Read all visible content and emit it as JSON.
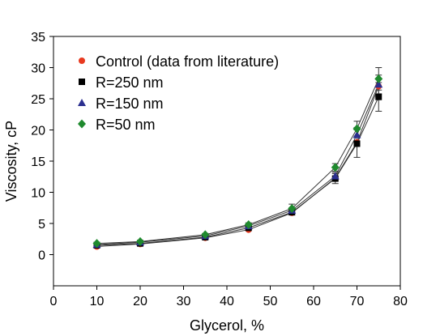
{
  "chart_data": {
    "type": "scatter",
    "title": "",
    "xlabel": "Glycerol, %",
    "ylabel": "Viscosity, cP",
    "xlim": [
      0,
      80
    ],
    "ylim": [
      -5,
      35
    ],
    "xticks": [
      0,
      10,
      20,
      30,
      40,
      50,
      60,
      70,
      80
    ],
    "yticks": [
      0,
      5,
      10,
      15,
      20,
      25,
      30,
      35
    ],
    "grid": false,
    "legend_position": "top-left",
    "x": [
      10,
      20,
      35,
      45,
      55,
      65,
      70,
      75
    ],
    "series": [
      {
        "name": "Control (data from literature)",
        "marker": "circle",
        "color": "#e8391f",
        "values": [
          1.3,
          1.7,
          2.7,
          4.0,
          6.7,
          12.3,
          18.0,
          27.0
        ],
        "errors": [
          0,
          0,
          0,
          0,
          0,
          0,
          0,
          0
        ]
      },
      {
        "name": "R=250 nm",
        "marker": "square",
        "color": "#000000",
        "values": [
          1.5,
          1.8,
          2.8,
          4.3,
          6.8,
          12.2,
          17.8,
          25.3
        ],
        "errors": [
          0.2,
          0.2,
          0.2,
          0.3,
          0.4,
          0.8,
          2.2,
          2.3
        ]
      },
      {
        "name": "R=150 nm",
        "marker": "triangle",
        "color": "#2b2f8f",
        "values": [
          1.6,
          2.0,
          3.0,
          4.6,
          7.1,
          12.6,
          19.2,
          27.3
        ],
        "errors": [
          0.2,
          0.2,
          0.2,
          0.3,
          0.4,
          0.6,
          1.2,
          1.5
        ]
      },
      {
        "name": "R=50 nm",
        "marker": "diamond",
        "color": "#1f8a2e",
        "values": [
          1.8,
          2.1,
          3.2,
          4.8,
          7.4,
          14.0,
          20.2,
          28.2
        ],
        "errors": [
          0.2,
          0.2,
          0.2,
          0.3,
          0.7,
          0.6,
          1.2,
          1.8
        ]
      }
    ]
  }
}
